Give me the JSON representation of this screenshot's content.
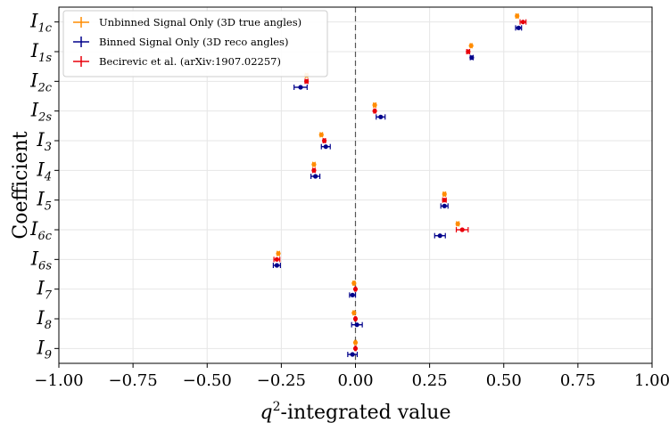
{
  "chart_data": {
    "type": "scatter",
    "orientation": "horizontal",
    "xlabel_main": "q",
    "xlabel_sup": "2",
    "xlabel_rest": "-integrated value",
    "ylabel": "Coefficient",
    "xlim": [
      -1.0,
      1.0
    ],
    "xticks": [
      -1.0,
      -0.75,
      -0.5,
      -0.25,
      0.0,
      0.25,
      0.5,
      0.75,
      1.0
    ],
    "xtick_labels": [
      "−1.00",
      "−0.75",
      "−0.50",
      "−0.25",
      "0.00",
      "0.25",
      "0.50",
      "0.75",
      "1.00"
    ],
    "grid": true,
    "reference_line_x": 0.0,
    "legend_position": "top-left",
    "categories": [
      {
        "main": "I",
        "sub": "1c"
      },
      {
        "main": "I",
        "sub": "1s"
      },
      {
        "main": "I",
        "sub": "2c"
      },
      {
        "main": "I",
        "sub": "2s"
      },
      {
        "main": "I",
        "sub": "3"
      },
      {
        "main": "I",
        "sub": "4"
      },
      {
        "main": "I",
        "sub": "5"
      },
      {
        "main": "I",
        "sub": "6c"
      },
      {
        "main": "I",
        "sub": "6s"
      },
      {
        "main": "I",
        "sub": "7"
      },
      {
        "main": "I",
        "sub": "8"
      },
      {
        "main": "I",
        "sub": "9"
      }
    ],
    "series": [
      {
        "name": "Unbinned Signal Only (3D true angles)",
        "color": "#ff8c00",
        "offset": -0.2,
        "values": [
          0.545,
          0.39,
          -0.165,
          0.065,
          -0.115,
          -0.14,
          0.3,
          0.345,
          -0.26,
          -0.005,
          -0.005,
          0.0
        ],
        "errors": [
          0.004,
          0.003,
          0.004,
          0.004,
          0.004,
          0.004,
          0.004,
          0.004,
          0.004,
          0.003,
          0.003,
          0.003
        ]
      },
      {
        "name": "Binned Signal Only (3D reco angles)",
        "color": "#00008b",
        "offset": 0.2,
        "values": [
          0.55,
          0.392,
          -0.185,
          0.085,
          -0.1,
          -0.135,
          0.3,
          0.285,
          -0.265,
          -0.01,
          0.005,
          -0.01
        ],
        "errors": [
          0.01,
          0.005,
          0.022,
          0.015,
          0.015,
          0.015,
          0.012,
          0.018,
          0.012,
          0.01,
          0.018,
          0.016
        ]
      },
      {
        "name": "Becirevic et al. (arXiv:1907.02257)",
        "color": "#e8000b",
        "offset": 0.0,
        "values": [
          0.565,
          0.38,
          -0.165,
          0.065,
          -0.105,
          -0.14,
          0.3,
          0.36,
          -0.265,
          0.0,
          0.0,
          0.0
        ],
        "errors": [
          0.01,
          0.005,
          0.005,
          0.003,
          0.004,
          0.004,
          0.006,
          0.02,
          0.01,
          0.002,
          0.002,
          0.002
        ]
      }
    ]
  }
}
